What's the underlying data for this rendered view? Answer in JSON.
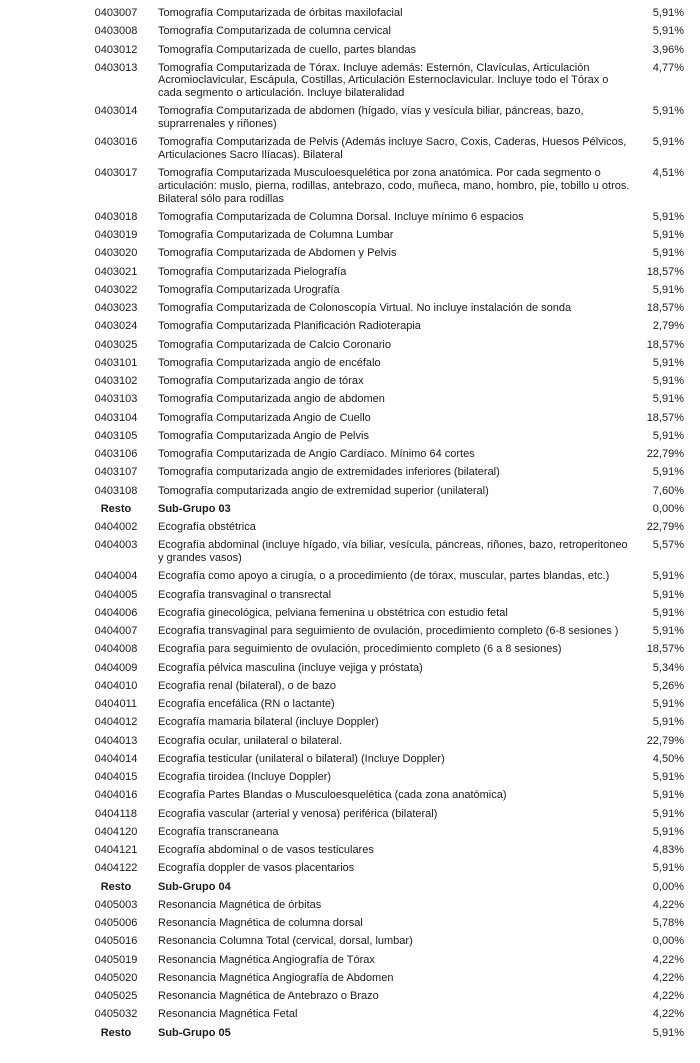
{
  "colors": {
    "background": "#ffffff",
    "text": "#1c1c1c"
  },
  "table": {
    "rows": [
      {
        "code": "0403007",
        "description": "Tomografía Computarizada de órbitas maxilofacial",
        "value": "5,91%",
        "bold": false
      },
      {
        "code": "0403008",
        "description": "Tomografía Computarizada de columna cervical",
        "value": "5,91%",
        "bold": false
      },
      {
        "code": "0403012",
        "description": "Tomografía Computarizada de cuello, partes blandas",
        "value": "3,96%",
        "bold": false
      },
      {
        "code": "0403013",
        "description": "Tomografía Computarizada de Tórax. Incluye además: Esternón, Clavículas, Articulación Acromioclavicular, Escápula, Costillas, Articulación Esternoclavicular. Incluye todo el Tórax o cada segmento o articulación. Incluye bilateralidad",
        "value": "4,77%",
        "bold": false
      },
      {
        "code": "0403014",
        "description": "Tomografía Computarizada de abdomen (hígado, vías y vesícula biliar, páncreas, bazo, suprarrenales y riñones)",
        "value": "5,91%",
        "bold": false
      },
      {
        "code": "0403016",
        "description": "Tomografía Computarizada de Pelvis (Además incluye Sacro, Coxis, Caderas, Huesos Pélvicos, Articulaciones Sacro Ilíacas). Bilateral",
        "value": "5,91%",
        "bold": false
      },
      {
        "code": "0403017",
        "description": "Tomografía Computarizada Musculoesquelética por zona anatómica. Por cada segmento o articulación: muslo, pierna, rodillas, antebrazo, codo, muñeca, mano, hombro, pie, tobillo u otros. Bilateral sólo para rodillas",
        "value": "4,51%",
        "bold": false
      },
      {
        "code": "0403018",
        "description": "Tomografía Computarizada de Columna Dorsal. Incluye mínimo 6 espacios",
        "value": "5,91%",
        "bold": false
      },
      {
        "code": "0403019",
        "description": "Tomografía Computarizada de Columna Lumbar",
        "value": "5,91%",
        "bold": false
      },
      {
        "code": "0403020",
        "description": "Tomografía Computarizada de Abdomen y Pelvis",
        "value": "5,91%",
        "bold": false
      },
      {
        "code": "0403021",
        "description": "Tomografía Computarizada Pielografía",
        "value": "18,57%",
        "bold": false
      },
      {
        "code": "0403022",
        "description": "Tomografía Computarizada Urografía",
        "value": "5,91%",
        "bold": false
      },
      {
        "code": "0403023",
        "description": "Tomografía Computarizada de Colonoscopía Virtual. No incluye instalación de sonda",
        "value": "18,57%",
        "bold": false
      },
      {
        "code": "0403024",
        "description": "Tomografía Computarizada Planificación Radioterapia",
        "value": "2,79%",
        "bold": false
      },
      {
        "code": "0403025",
        "description": "Tomografía Computarizada de Calcio Coronario",
        "value": "18,57%",
        "bold": false
      },
      {
        "code": "0403101",
        "description": "Tomografía Computarizada angio de encéfalo",
        "value": "5,91%",
        "bold": false
      },
      {
        "code": "0403102",
        "description": "Tomografía Computarizada angio de tórax",
        "value": "5,91%",
        "bold": false
      },
      {
        "code": "0403103",
        "description": "Tomografía Computarizada angio de abdomen",
        "value": "5,91%",
        "bold": false
      },
      {
        "code": "0403104",
        "description": "Tomografía Computarizada Angio de Cuello",
        "value": "18,57%",
        "bold": false
      },
      {
        "code": "0403105",
        "description": "Tomografía Computarizada Angio de Pelvis",
        "value": "5,91%",
        "bold": false
      },
      {
        "code": "0403106",
        "description": "Tomografía Computarizada de Angio Cardíaco. Mínimo 64 cortes",
        "value": "22,79%",
        "bold": false
      },
      {
        "code": "0403107",
        "description": "Tomografía computarizada angio de extremidades inferiores (bilateral)",
        "value": "5,91%",
        "bold": false
      },
      {
        "code": "0403108",
        "description": "Tomografía computarizada angio de extremidad superior (unilateral)",
        "value": "7,60%",
        "bold": false
      },
      {
        "code": "Resto",
        "description": "Sub-Grupo 03",
        "value": "0,00%",
        "bold": true
      },
      {
        "code": "0404002",
        "description": "Ecografía obstétrica",
        "value": "22,79%",
        "bold": false
      },
      {
        "code": "0404003",
        "description": "Ecografía abdominal (incluye hígado, vía biliar, vesícula, páncreas, riñones, bazo, retroperitoneo y grandes vasos)",
        "value": "5,57%",
        "bold": false
      },
      {
        "code": "0404004",
        "description": "Ecografía como apoyo a cirugía, o a procedimiento (de tórax, muscular, partes blandas, etc.)",
        "value": "5,91%",
        "bold": false
      },
      {
        "code": "0404005",
        "description": "Ecografía transvaginal o transrectal",
        "value": "5,91%",
        "bold": false
      },
      {
        "code": "0404006",
        "description": "Ecografía ginecológica, pelviana femenina u obstétrica con estudio fetal",
        "value": "5,91%",
        "bold": false
      },
      {
        "code": "0404007",
        "description": "Ecografía transvaginal para seguimiento de ovulación, procedimiento completo (6-8 sesiones )",
        "value": "5,91%",
        "bold": false
      },
      {
        "code": "0404008",
        "description": "Ecografía para seguimiento de ovulación, procedimiento completo (6 a 8 sesiones)",
        "value": "18,57%",
        "bold": false
      },
      {
        "code": "0404009",
        "description": "Ecografía pélvica masculina (incluye vejiga y próstata)",
        "value": "5,34%",
        "bold": false
      },
      {
        "code": "0404010",
        "description": "Ecografía renal (bilateral), o de bazo",
        "value": "5,26%",
        "bold": false
      },
      {
        "code": "0404011",
        "description": "Ecografía encefálica (RN o lactante)",
        "value": "5,91%",
        "bold": false
      },
      {
        "code": "0404012",
        "description": "Ecografía mamaria bilateral (incluye Doppler)",
        "value": "5,91%",
        "bold": false
      },
      {
        "code": "0404013",
        "description": "Ecografía ocular, unilateral o bilateral.",
        "value": "22,79%",
        "bold": false
      },
      {
        "code": "0404014",
        "description": "Ecografía testicular (unilateral o bilateral) (Incluye Doppler)",
        "value": "4,50%",
        "bold": false
      },
      {
        "code": "0404015",
        "description": "Ecografía tiroidea (Incluye Doppler)",
        "value": "5,91%",
        "bold": false
      },
      {
        "code": "0404016",
        "description": "Ecografía Partes Blandas o Musculoesquelética (cada zona anatómica)",
        "value": "5,91%",
        "bold": false
      },
      {
        "code": "0404118",
        "description": "Ecografía vascular (arterial y venosa) periférica (bilateral)",
        "value": "5,91%",
        "bold": false
      },
      {
        "code": "0404120",
        "description": "Ecografía transcraneana",
        "value": "5,91%",
        "bold": false
      },
      {
        "code": "0404121",
        "description": "Ecografía abdominal o de vasos testiculares",
        "value": "4,83%",
        "bold": false
      },
      {
        "code": "0404122",
        "description": "Ecografía doppler de vasos placentarios",
        "value": "5,91%",
        "bold": false
      },
      {
        "code": "Resto",
        "description": "Sub-Grupo 04",
        "value": "0,00%",
        "bold": true
      },
      {
        "code": "0405003",
        "description": "Resonancia Magnética de órbitas",
        "value": "4,22%",
        "bold": false
      },
      {
        "code": "0405006",
        "description": "Resonancia Magnética de columna dorsal",
        "value": "5,78%",
        "bold": false
      },
      {
        "code": "0405016",
        "description": "Resonancia Columna Total (cervical, dorsal, lumbar)",
        "value": "0,00%",
        "bold": false
      },
      {
        "code": "0405019",
        "description": "Resonancia Magnética Angiografía de Tórax",
        "value": "4,22%",
        "bold": false
      },
      {
        "code": "0405020",
        "description": "Resonancia Magnética Angiografía de Abdomen",
        "value": "4,22%",
        "bold": false
      },
      {
        "code": "0405025",
        "description": "Resonancia Magnética de Antebrazo o Brazo",
        "value": "4,22%",
        "bold": false
      },
      {
        "code": "0405032",
        "description": "Resonancia Magnética Fetal",
        "value": "4,22%",
        "bold": false
      },
      {
        "code": "Resto",
        "description": "Sub-Grupo 05",
        "value": "5,91%",
        "bold": true
      }
    ]
  }
}
